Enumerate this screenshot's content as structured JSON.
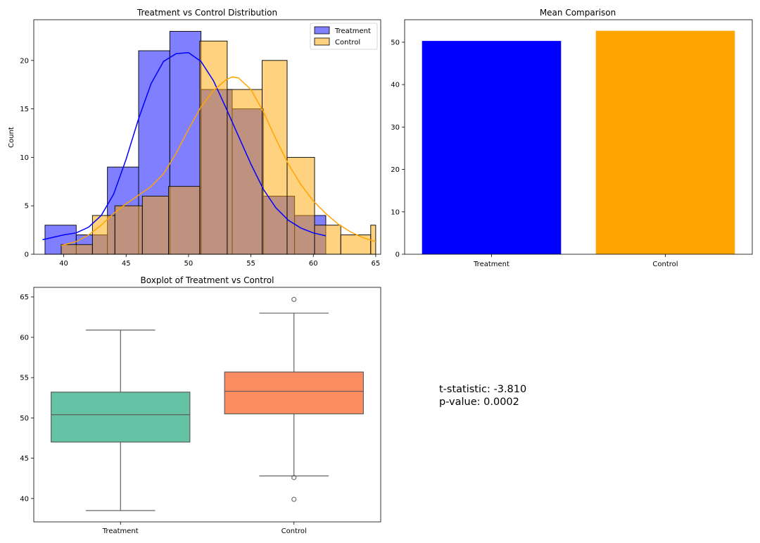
{
  "chart_data": [
    {
      "id": "hist",
      "type": "histogram",
      "title": "Treatment vs Control Distribution",
      "xlabel": "",
      "ylabel": "Count",
      "xlim": [
        37.6,
        65.4
      ],
      "ylim": [
        0,
        24.2
      ],
      "xticks": [
        40,
        45,
        50,
        55,
        60,
        65
      ],
      "yticks": [
        0,
        5,
        10,
        15,
        20
      ],
      "legend": {
        "location": "top-right",
        "entries": [
          "Treatment",
          "Control"
        ]
      },
      "series": [
        {
          "name": "Treatment",
          "color": "#0000ff",
          "bins": [
            {
              "x0": 38.5,
              "x1": 41.0,
              "count": 3
            },
            {
              "x0": 41.0,
              "x1": 43.5,
              "count": 2
            },
            {
              "x0": 43.5,
              "x1": 46.0,
              "count": 9
            },
            {
              "x0": 46.0,
              "x1": 48.5,
              "count": 21
            },
            {
              "x0": 48.5,
              "x1": 51.0,
              "count": 23
            },
            {
              "x0": 51.0,
              "x1": 53.5,
              "count": 17
            },
            {
              "x0": 53.5,
              "x1": 56.0,
              "count": 15
            },
            {
              "x0": 56.0,
              "x1": 58.5,
              "count": 6
            },
            {
              "x0": 58.5,
              "x1": 61.0,
              "count": 4
            }
          ],
          "kde": [
            [
              38.3,
              1.5
            ],
            [
              40,
              2.0
            ],
            [
              41,
              2.2
            ],
            [
              42,
              2.8
            ],
            [
              43,
              4.0
            ],
            [
              44,
              6.2
            ],
            [
              45,
              9.8
            ],
            [
              46,
              14.0
            ],
            [
              47,
              17.6
            ],
            [
              48,
              19.9
            ],
            [
              49,
              20.7
            ],
            [
              50,
              20.8
            ],
            [
              51,
              19.9
            ],
            [
              52,
              17.9
            ],
            [
              53,
              15.1
            ],
            [
              54,
              12.2
            ],
            [
              55,
              9.3
            ],
            [
              56,
              6.7
            ],
            [
              57,
              4.8
            ],
            [
              58,
              3.5
            ],
            [
              59,
              2.7
            ],
            [
              60,
              2.2
            ],
            [
              61,
              1.9
            ]
          ]
        },
        {
          "name": "Control",
          "color": "#ffa500",
          "bins": [
            {
              "x0": 39.8,
              "x1": 42.3,
              "count": 1
            },
            {
              "x0": 42.3,
              "x1": 44.1,
              "count": 4
            },
            {
              "x0": 44.1,
              "x1": 46.3,
              "count": 5
            },
            {
              "x0": 46.3,
              "x1": 48.4,
              "count": 6
            },
            {
              "x0": 48.4,
              "x1": 50.9,
              "count": 7
            },
            {
              "x0": 50.9,
              "x1": 53.1,
              "count": 22
            },
            {
              "x0": 53.1,
              "x1": 55.9,
              "count": 17
            },
            {
              "x0": 55.9,
              "x1": 57.9,
              "count": 20
            },
            {
              "x0": 57.9,
              "x1": 60.1,
              "count": 10
            },
            {
              "x0": 60.1,
              "x1": 62.2,
              "count": 3
            },
            {
              "x0": 62.2,
              "x1": 64.6,
              "count": 2
            },
            {
              "x0": 64.6,
              "x1": 65.0,
              "count": 3
            }
          ],
          "kde": [
            [
              39.8,
              0.9
            ],
            [
              41,
              1.3
            ],
            [
              42,
              2.0
            ],
            [
              43,
              3.0
            ],
            [
              44,
              4.2
            ],
            [
              45,
              5.2
            ],
            [
              46,
              6.1
            ],
            [
              47,
              7.0
            ],
            [
              48,
              8.3
            ],
            [
              49,
              10.4
            ],
            [
              50,
              12.9
            ],
            [
              51,
              15.2
            ],
            [
              52,
              16.9
            ],
            [
              53,
              18.0
            ],
            [
              53.5,
              18.3
            ],
            [
              54,
              18.2
            ],
            [
              55,
              17.0
            ],
            [
              56,
              14.7
            ],
            [
              57,
              11.9
            ],
            [
              58,
              9.3
            ],
            [
              59,
              7.2
            ],
            [
              60,
              5.5
            ],
            [
              61,
              4.2
            ],
            [
              62,
              3.1
            ],
            [
              63,
              2.3
            ],
            [
              64,
              1.7
            ],
            [
              65,
              1.3
            ]
          ]
        }
      ]
    },
    {
      "id": "bars",
      "type": "bar",
      "title": "Mean Comparison",
      "categories": [
        "Treatment",
        "Control"
      ],
      "values": [
        50.3,
        52.7
      ],
      "colors": [
        "#0000ff",
        "#ffa500"
      ],
      "ylim": [
        0,
        55.3
      ],
      "yticks": [
        0,
        10,
        20,
        30,
        40,
        50
      ]
    },
    {
      "id": "box",
      "type": "boxplot",
      "title": "Boxplot of Treatment vs Control",
      "categories": [
        "Treatment",
        "Control"
      ],
      "ylim": [
        37.1,
        66.2
      ],
      "yticks": [
        40,
        45,
        50,
        55,
        60,
        65
      ],
      "boxes": [
        {
          "name": "Treatment",
          "color": "#66c2a5",
          "whisker_low": 38.5,
          "q1": 47.0,
          "median": 50.4,
          "q3": 53.2,
          "whisker_high": 60.9,
          "outliers": []
        },
        {
          "name": "Control",
          "color": "#fc8d62",
          "whisker_low": 42.8,
          "q1": 50.5,
          "median": 53.3,
          "q3": 55.7,
          "whisker_high": 63.0,
          "outliers": [
            64.7,
            42.6,
            39.9
          ]
        }
      ]
    }
  ],
  "stats_panel": {
    "line1": "t-statistic: -3.810",
    "line2": "p-value: 0.0002"
  }
}
